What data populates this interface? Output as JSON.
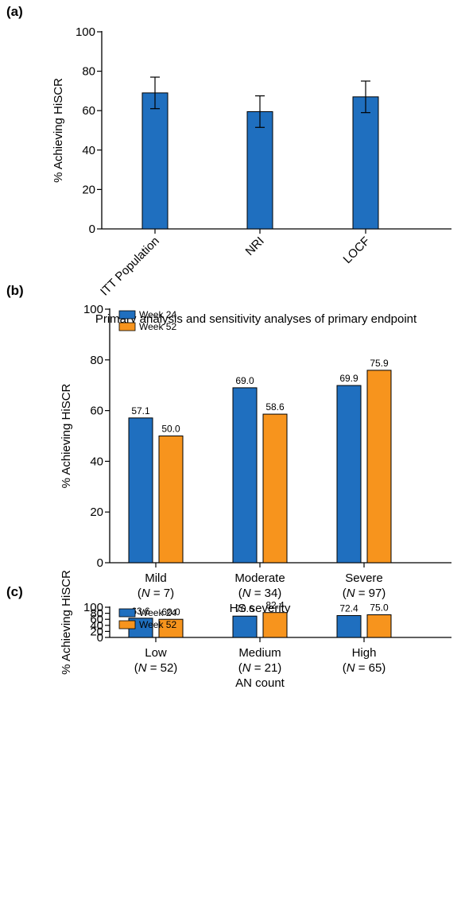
{
  "colors": {
    "week24": "#1f6fbf",
    "week52": "#f7941d",
    "bar_a": "#1f6fbf",
    "stroke": "#000000"
  },
  "chart_data": [
    {
      "panel": "(a)",
      "type": "bar",
      "ylabel": "% Achieving HiSCR",
      "xlabel": "Primary analysis and sensitivity analyses of primary endpoint",
      "ylim": [
        0,
        100
      ],
      "yticks": [
        "0",
        "20",
        "40",
        "60",
        "80",
        "100"
      ],
      "categories": [
        "ITT Population",
        "NRI",
        "LOCF"
      ],
      "values": [
        69,
        59.5,
        67
      ],
      "error_low": [
        61,
        51.5,
        59
      ],
      "error_high": [
        77,
        67.5,
        75
      ]
    },
    {
      "panel": "(b)",
      "type": "bar",
      "ylabel": "% Achieving HiSCR",
      "xlabel": "HS severity",
      "ylim": [
        0,
        100
      ],
      "yticks": [
        "0",
        "20",
        "40",
        "60",
        "80",
        "100"
      ],
      "categories": [
        {
          "name": "Mild",
          "n_prefix": "(",
          "n_italic": "N",
          "n_suffix": " = 7)"
        },
        {
          "name": "Moderate",
          "n_prefix": "(",
          "n_italic": "N",
          "n_suffix": " = 34)"
        },
        {
          "name": "Severe",
          "n_prefix": "(",
          "n_italic": "N",
          "n_suffix": " = 97)"
        }
      ],
      "series": [
        {
          "name": "Week 24",
          "values": [
            57.1,
            69.0,
            69.9
          ],
          "labels": [
            "57.1",
            "69.0",
            "69.9"
          ]
        },
        {
          "name": "Week 52",
          "values": [
            50.0,
            58.6,
            75.9
          ],
          "labels": [
            "50.0",
            "58.6",
            "75.9"
          ]
        }
      ]
    },
    {
      "panel": "(c)",
      "type": "bar",
      "ylabel": "% Achieving HiSCR",
      "xlabel": "AN count",
      "ylim": [
        0,
        100
      ],
      "yticks": [
        "0",
        "20",
        "40",
        "60",
        "80",
        "100"
      ],
      "categories": [
        {
          "name": "Low",
          "n_prefix": "(",
          "n_italic": "N",
          "n_suffix": " = 52)"
        },
        {
          "name": "Medium",
          "n_prefix": "(",
          "n_italic": "N",
          "n_suffix": " = 21)"
        },
        {
          "name": "High",
          "n_prefix": "(",
          "n_italic": "N",
          "n_suffix": " = 65)"
        }
      ],
      "series": [
        {
          "name": "Week 24",
          "values": [
            63.6,
            70.6,
            72.4
          ],
          "labels": [
            "63.6",
            "70.6",
            "72.4"
          ]
        },
        {
          "name": "Week 52",
          "values": [
            60.0,
            82.4,
            75.0
          ],
          "labels": [
            "60.0",
            "82.4",
            "75.0"
          ]
        }
      ]
    }
  ]
}
